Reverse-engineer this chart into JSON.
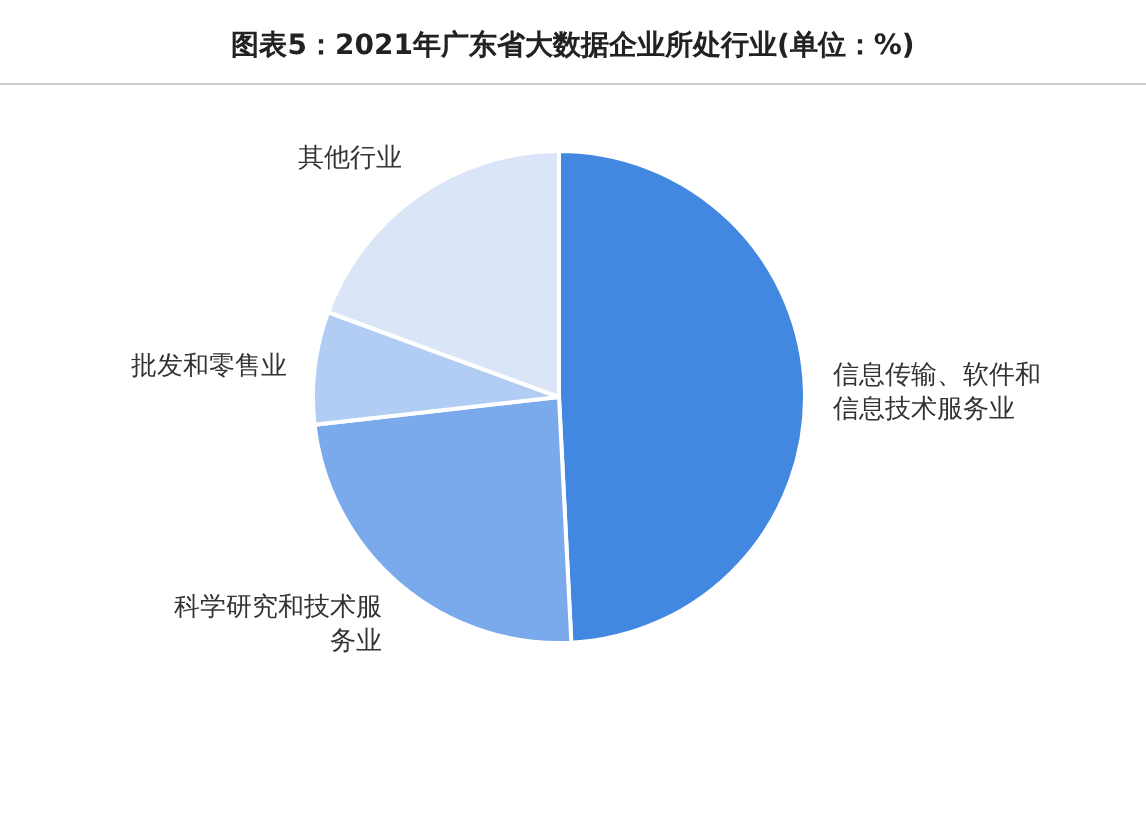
{
  "chart_data": {
    "type": "pie",
    "title": "图表5：2021年广东省大数据企业所处行业(单位：%)",
    "categories": [
      "信息传输、软件和信息技术服务业",
      "科学研究和技术服务业",
      "批发和零售业",
      "其他行业"
    ],
    "values": [
      49.2,
      24.0,
      7.4,
      19.4
    ],
    "colors": [
      "#4287e0",
      "#7aaaeb",
      "#b2cdf3",
      "#dae6f7"
    ]
  }
}
